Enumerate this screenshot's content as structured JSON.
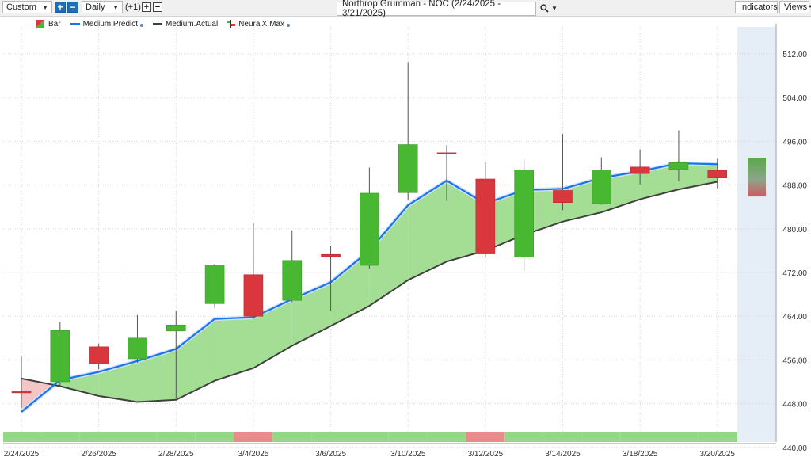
{
  "toolbar": {
    "period_value": "Custom",
    "interval_value": "Daily",
    "offset_label": "(+1)",
    "chart_title": "Northrop Grumman - NOC (2/24/2025 - 3/21/2025)",
    "indicators_label": "Indicators",
    "views_label": "Views",
    "icons": [
      "dropdown-arrow-icon",
      "plus-icon",
      "minus-icon",
      "search-icon",
      "chevron-down-icon"
    ]
  },
  "legend": [
    {
      "label": "Bar",
      "icon": "bar-icon"
    },
    {
      "label": "Medium.Predict",
      "color": "#1a73e8",
      "has_dot": true
    },
    {
      "label": "Medium.Actual",
      "color": "#404040",
      "has_dot": false
    },
    {
      "label": "NeuralX.Max",
      "icon": "neuralx-icon",
      "has_dot": true
    }
  ],
  "colors": {
    "up": "#48b833",
    "down": "#d9363e",
    "predict": "#1a73e8",
    "actual": "#404040",
    "fill_positive": "#a3de94",
    "fill_negative": "#f4c6c6",
    "forecast_band": "#e5edf6",
    "strip_positive": "#93d985",
    "strip_negative": "#e98a8c"
  },
  "chart_data": {
    "type": "candlestick",
    "title": "Northrop Grumman - NOC (2/24/2025 - 3/21/2025)",
    "y_axis_side": "right",
    "ylim": [
      440,
      516
    ],
    "y_ticks": [
      "512.00",
      "504.00",
      "496.00",
      "488.00",
      "480.00",
      "472.00",
      "464.00",
      "456.00",
      "448.00",
      "440.00"
    ],
    "x_tick_labels": [
      "2/24/2025",
      "2/26/2025",
      "2/28/2025",
      "3/4/2025",
      "3/6/2025",
      "3/10/2025",
      "3/12/2025",
      "3/14/2025",
      "3/18/2025",
      "3/20/2025"
    ],
    "dates": [
      "2/24/2025",
      "2/25/2025",
      "2/26/2025",
      "2/27/2025",
      "2/28/2025",
      "3/3/2025",
      "3/4/2025",
      "3/5/2025",
      "3/6/2025",
      "3/7/2025",
      "3/10/2025",
      "3/11/2025",
      "3/12/2025",
      "3/13/2025",
      "3/14/2025",
      "3/17/2025",
      "3/18/2025",
      "3/19/2025",
      "3/20/2025"
    ],
    "candles": [
      {
        "open": 450.2,
        "high": 456.6,
        "low": 447.3,
        "close": 450.0
      },
      {
        "open": 452.0,
        "high": 462.9,
        "low": 451.0,
        "close": 461.4
      },
      {
        "open": 458.4,
        "high": 459.0,
        "low": 454.3,
        "close": 455.3
      },
      {
        "open": 456.2,
        "high": 464.2,
        "low": 455.5,
        "close": 460.0
      },
      {
        "open": 461.3,
        "high": 465.0,
        "low": 449.0,
        "close": 462.4
      },
      {
        "open": 466.3,
        "high": 473.6,
        "low": 465.5,
        "close": 473.4
      },
      {
        "open": 471.6,
        "high": 481.0,
        "low": 463.5,
        "close": 464.0
      },
      {
        "open": 466.9,
        "high": 479.7,
        "low": 466.6,
        "close": 474.2
      },
      {
        "open": 475.3,
        "high": 476.8,
        "low": 465.0,
        "close": 474.9
      },
      {
        "open": 473.3,
        "high": 491.2,
        "low": 472.7,
        "close": 486.5
      },
      {
        "open": 486.6,
        "high": 510.5,
        "low": 485.3,
        "close": 495.4
      },
      {
        "open": 493.9,
        "high": 495.3,
        "low": 485.1,
        "close": 493.7
      },
      {
        "open": 489.1,
        "high": 492.1,
        "low": 474.9,
        "close": 475.4
      },
      {
        "open": 474.8,
        "high": 492.7,
        "low": 472.3,
        "close": 490.8
      },
      {
        "open": 487.0,
        "high": 497.4,
        "low": 483.4,
        "close": 484.8
      },
      {
        "open": 484.6,
        "high": 493.1,
        "low": 484.4,
        "close": 490.8
      },
      {
        "open": 491.3,
        "high": 494.5,
        "low": 488.1,
        "close": 490.1
      },
      {
        "open": 490.9,
        "high": 498.0,
        "low": 488.7,
        "close": 492.1
      },
      {
        "open": 490.7,
        "high": 492.8,
        "low": 487.4,
        "close": 489.3
      }
    ],
    "series": [
      {
        "name": "Medium.Predict",
        "values": [
          446.5,
          452.3,
          453.8,
          455.8,
          458.0,
          463.5,
          463.8,
          467.1,
          470.2,
          476.0,
          484.3,
          488.8,
          484.6,
          487.1,
          487.3,
          489.3,
          490.5,
          492.0,
          491.8
        ]
      },
      {
        "name": "Medium.Actual",
        "values": [
          452.6,
          451.2,
          449.4,
          448.3,
          448.7,
          452.2,
          454.5,
          458.6,
          462.2,
          465.9,
          470.6,
          474.0,
          476.0,
          478.9,
          481.3,
          483.0,
          485.4,
          487.2,
          488.6
        ]
      }
    ],
    "forecast": {
      "open": 492.9,
      "close": 485.9
    },
    "signal_strip": [
      "positive",
      "positive",
      "positive",
      "positive",
      "positive",
      "positive",
      "negative",
      "positive",
      "positive",
      "positive",
      "positive",
      "positive",
      "negative",
      "positive",
      "positive",
      "positive",
      "positive",
      "positive",
      "positive"
    ]
  }
}
